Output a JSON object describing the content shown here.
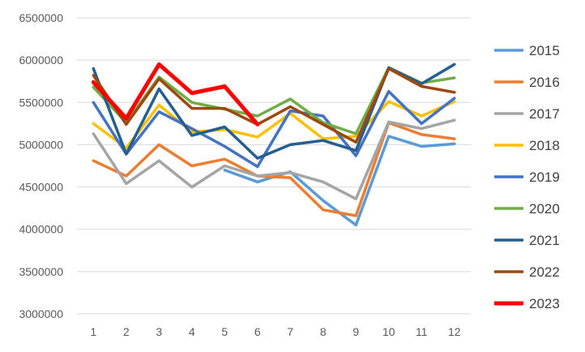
{
  "chart_data": {
    "type": "line",
    "title": "",
    "xlabel": "",
    "ylabel": "",
    "x": [
      1,
      2,
      3,
      4,
      5,
      6,
      7,
      8,
      9,
      10,
      11,
      12
    ],
    "ylim": [
      3000000,
      6500000
    ],
    "yticks": [
      3000000,
      3500000,
      4000000,
      4500000,
      5000000,
      5500000,
      6000000,
      6500000
    ],
    "grid": "horizontal",
    "legend": "right",
    "series": [
      {
        "name": "2015",
        "color": "#5B9BD5",
        "values": [
          null,
          null,
          null,
          null,
          4700000,
          4560000,
          4680000,
          4340000,
          4050000,
          5100000,
          4980000,
          5010000
        ]
      },
      {
        "name": "2016",
        "color": "#ED7D31",
        "values": [
          4810000,
          4630000,
          5000000,
          4750000,
          4830000,
          4630000,
          4610000,
          4230000,
          4160000,
          5260000,
          5120000,
          5070000
        ]
      },
      {
        "name": "2017",
        "color": "#A5A5A5",
        "values": [
          5130000,
          4540000,
          4810000,
          4500000,
          4750000,
          4630000,
          4670000,
          4560000,
          4360000,
          5270000,
          5190000,
          5290000
        ]
      },
      {
        "name": "2018",
        "color": "#FFC000",
        "values": [
          5250000,
          4960000,
          5470000,
          5150000,
          5180000,
          5090000,
          5370000,
          5070000,
          5100000,
          5510000,
          5340000,
          5510000
        ]
      },
      {
        "name": "2019",
        "color": "#4472C4",
        "values": [
          5500000,
          4890000,
          5390000,
          5190000,
          4980000,
          4740000,
          5400000,
          5340000,
          4870000,
          5630000,
          5250000,
          5550000
        ]
      },
      {
        "name": "2020",
        "color": "#70AD47",
        "values": [
          5680000,
          5260000,
          5800000,
          5500000,
          5420000,
          5340000,
          5540000,
          5260000,
          5130000,
          5910000,
          5730000,
          5790000
        ]
      },
      {
        "name": "2021",
        "color": "#255E91",
        "values": [
          5900000,
          4890000,
          5660000,
          5110000,
          5210000,
          4840000,
          5000000,
          5050000,
          4930000,
          5910000,
          5720000,
          5950000
        ]
      },
      {
        "name": "2022",
        "color": "#9E480E",
        "values": [
          5820000,
          5240000,
          5780000,
          5430000,
          5430000,
          5240000,
          5450000,
          5240000,
          5030000,
          5900000,
          5690000,
          5620000
        ]
      },
      {
        "name": "2023",
        "color": "#FF0000",
        "values": [
          5740000,
          5310000,
          5950000,
          5610000,
          5690000,
          5240000,
          null,
          null,
          null,
          null,
          null,
          null
        ]
      }
    ]
  }
}
